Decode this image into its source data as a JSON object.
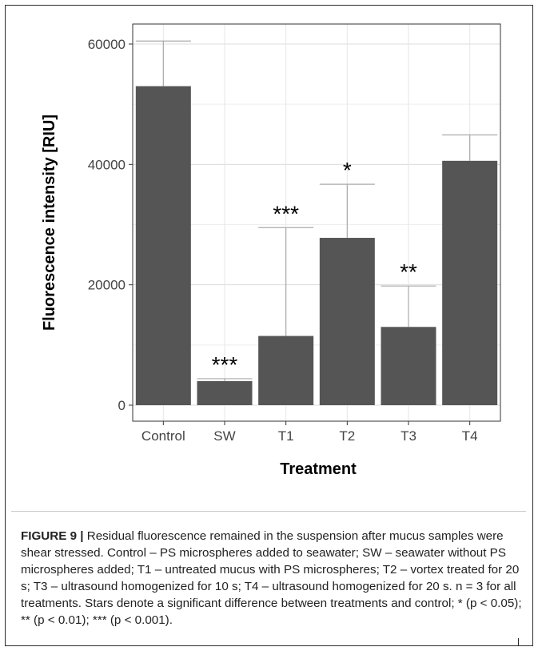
{
  "chart_data": {
    "type": "bar",
    "title": "",
    "xlabel": "Treatment",
    "ylabel": "Fluorescence intensity [RIU]",
    "ylim": [
      0,
      64000
    ],
    "yticks": [
      0,
      20000,
      40000,
      60000
    ],
    "ytick_labels": [
      "0",
      "20000",
      "40000",
      "60000"
    ],
    "grid": true,
    "bar_color": "#555555",
    "error_color": "#aaaaaa",
    "categories": [
      "Control",
      "SW",
      "T1",
      "T2",
      "T3",
      "T4"
    ],
    "values": [
      53000,
      4000,
      11500,
      27800,
      13000,
      40600
    ],
    "error_upper": [
      60500,
      4400,
      29500,
      36700,
      19800,
      44900
    ],
    "significance": [
      "",
      "***",
      "***",
      "*",
      "**",
      ""
    ]
  },
  "caption": {
    "label": "FIGURE 9 |",
    "text": "Residual fluorescence remained in the suspension after mucus samples were shear stressed. Control – PS microspheres added to seawater; SW – seawater without PS microspheres added; T1 – untreated mucus with PS microspheres; T2 – vortex treated for 20 s; T3 – ultrasound homogenized for 10 s; T4 – ultrasound homogenized for 20 s. n = 3 for all treatments. Stars denote a significant difference between treatments and control; * (p < 0.05); ** (p < 0.01); *** (p < 0.001)."
  }
}
